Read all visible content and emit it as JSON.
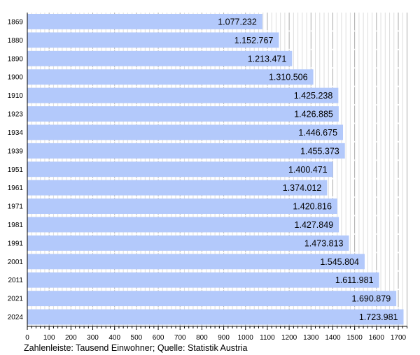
{
  "chart_data": {
    "type": "bar",
    "orientation": "horizontal",
    "categories": [
      "1869",
      "1880",
      "1890",
      "1900",
      "1910",
      "1923",
      "1934",
      "1939",
      "1951",
      "1961",
      "1971",
      "1981",
      "1991",
      "2001",
      "2011",
      "2021",
      "2024"
    ],
    "values": [
      1077.232,
      1152.767,
      1213.471,
      1310.506,
      1425.238,
      1426.885,
      1446.675,
      1455.373,
      1400.471,
      1374.012,
      1420.816,
      1427.849,
      1473.813,
      1545.804,
      1611.981,
      1690.879,
      1723.981
    ],
    "value_labels": [
      "1.077.232",
      "1.152.767",
      "1.213.471",
      "1.310.506",
      "1.425.238",
      "1.426.885",
      "1.446.675",
      "1.455.373",
      "1.400.471",
      "1.374.012",
      "1.420.816",
      "1.427.849",
      "1.473.813",
      "1.545.804",
      "1.611.981",
      "1.690.879",
      "1.723.981"
    ],
    "xticks": [
      0,
      100,
      200,
      300,
      400,
      500,
      600,
      700,
      800,
      900,
      1000,
      1100,
      1200,
      1300,
      1400,
      1500,
      1600,
      1700
    ],
    "xlim": [
      0,
      1740
    ],
    "grid": true,
    "bar_color": "#b3c9fb",
    "caption": "Zahlenleiste: Tausend Einwohner; Quelle: Statistik Austria"
  }
}
